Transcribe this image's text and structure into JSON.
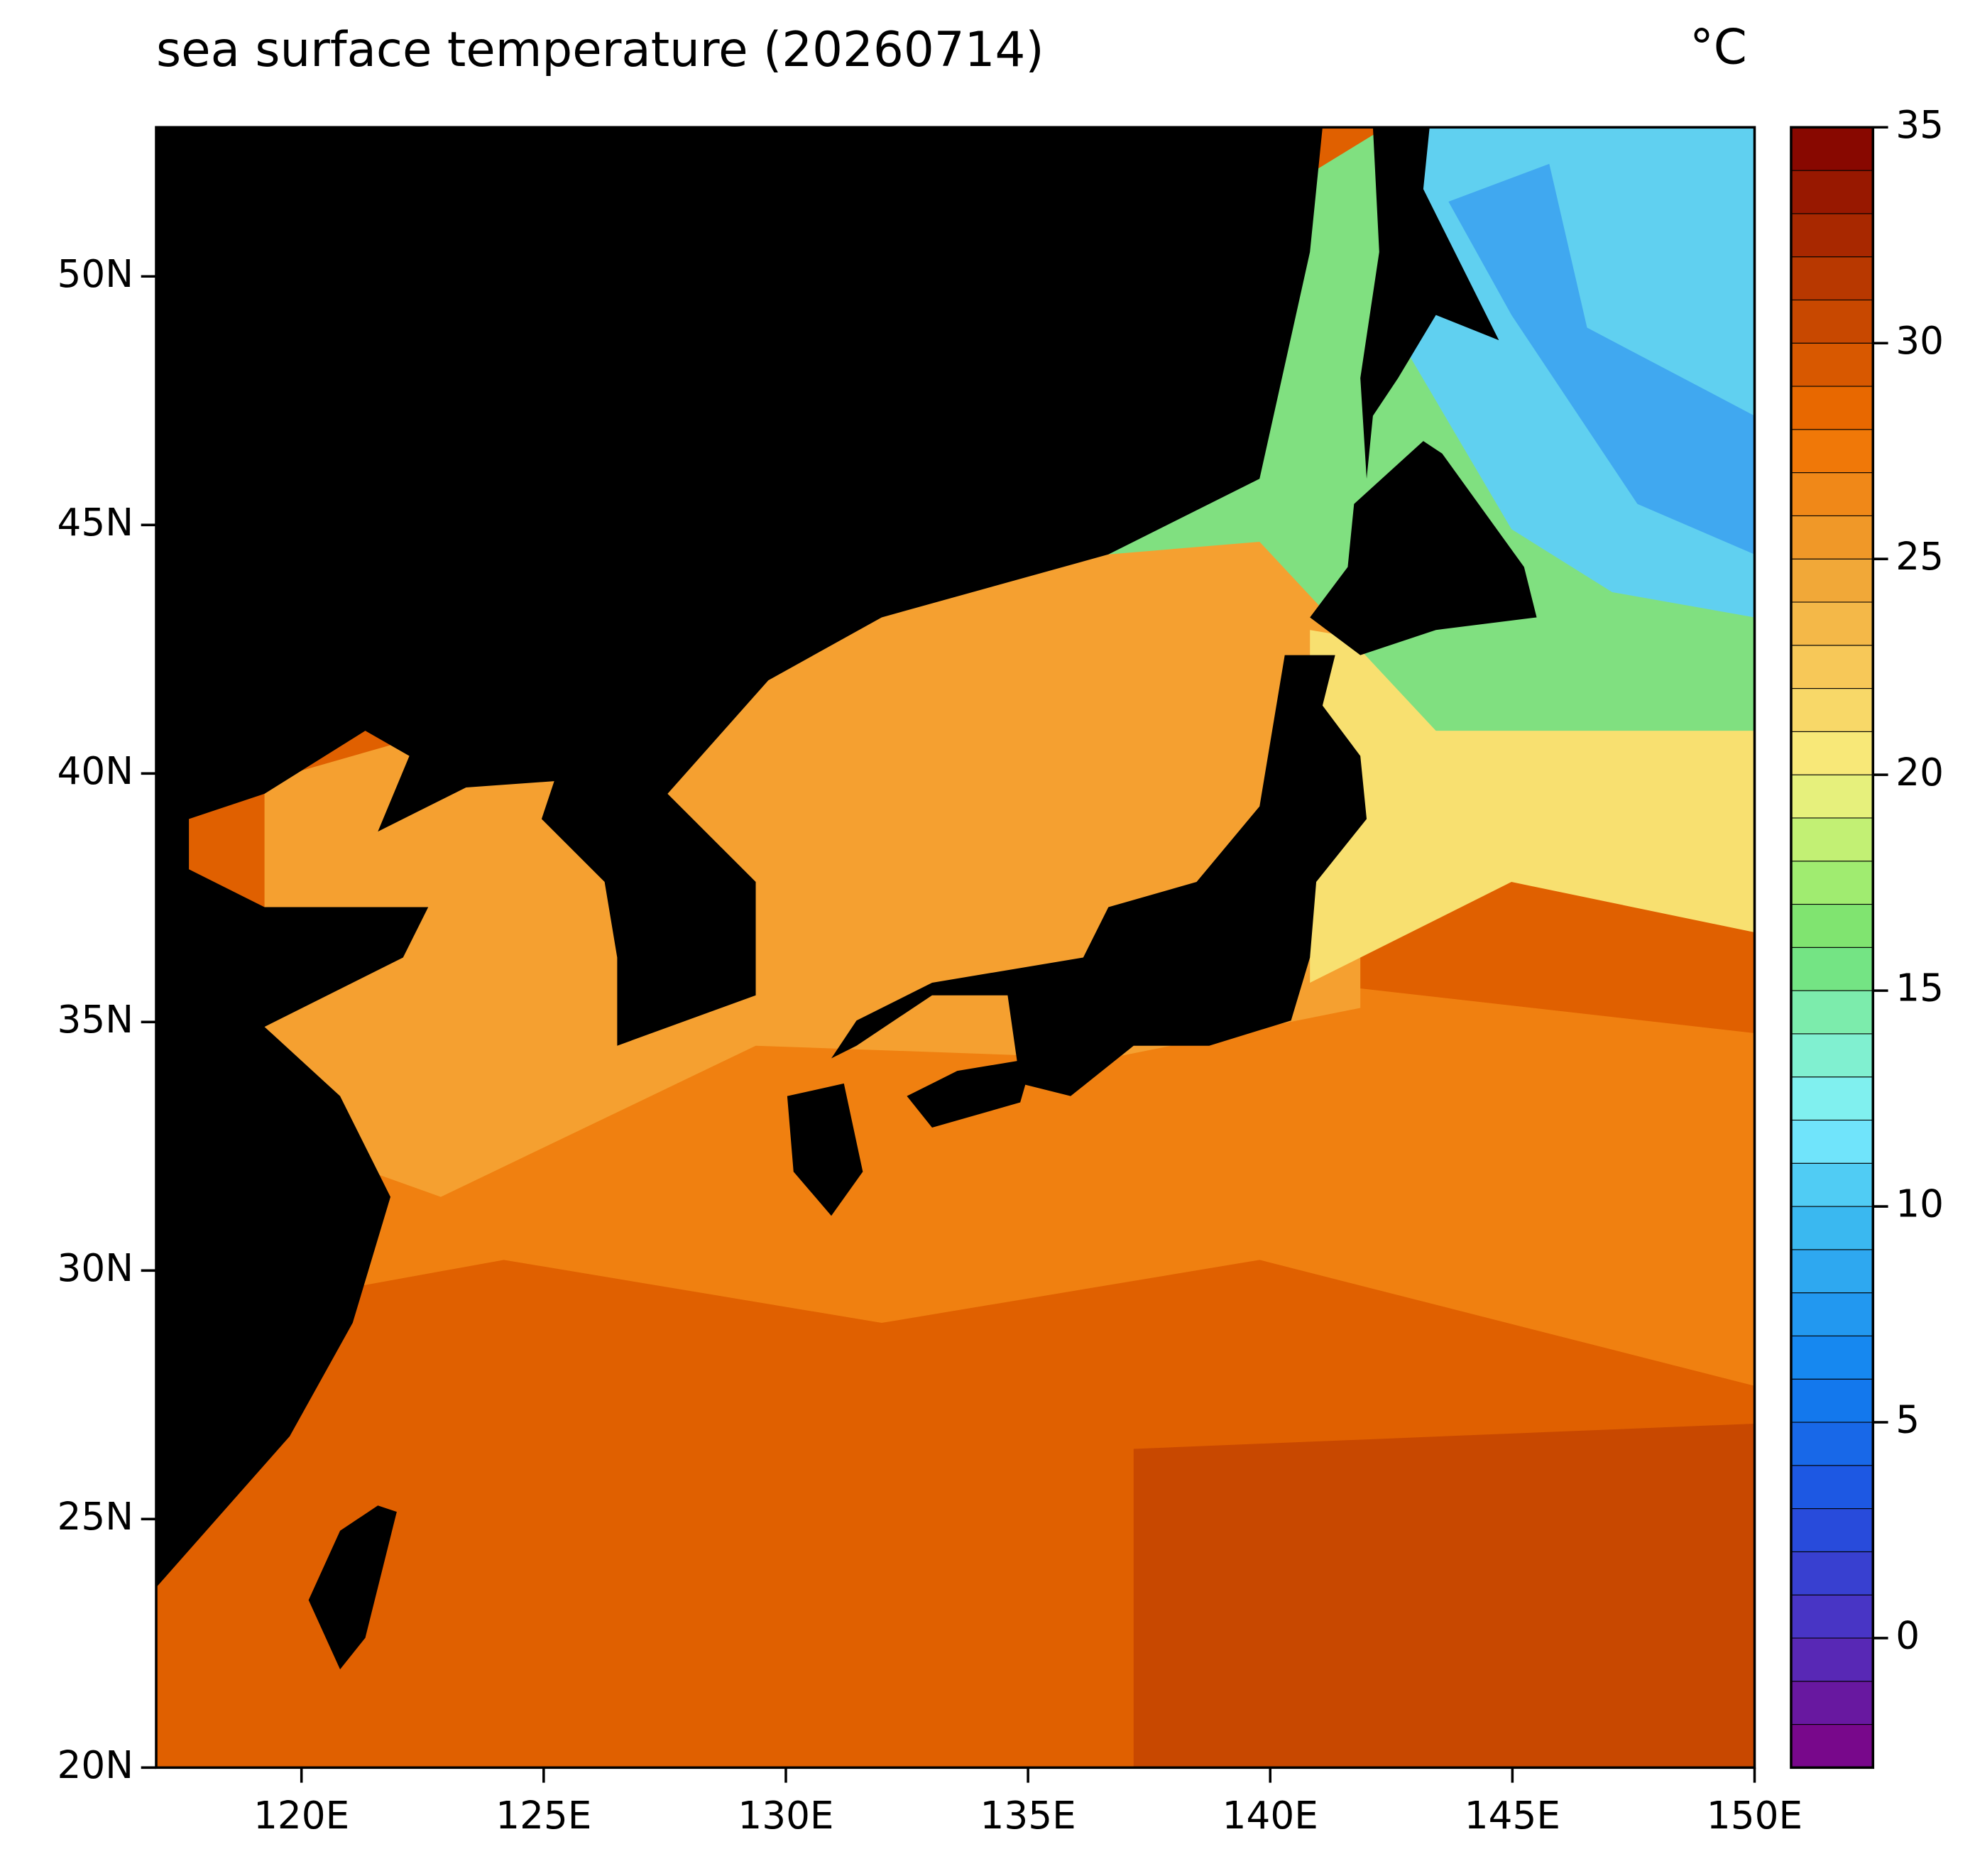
{
  "chart_data": {
    "type": "contour",
    "title": "sea surface temperature (20260714)",
    "unit": "°C",
    "xlim": [
      117,
      150
    ],
    "ylim": [
      20,
      53
    ],
    "xticks": [
      {
        "value": 120,
        "label": "120E"
      },
      {
        "value": 125,
        "label": "125E"
      },
      {
        "value": 130,
        "label": "130E"
      },
      {
        "value": 135,
        "label": "135E"
      },
      {
        "value": 140,
        "label": "140E"
      },
      {
        "value": 145,
        "label": "145E"
      },
      {
        "value": 150,
        "label": "150E"
      }
    ],
    "yticks": [
      {
        "value": 20,
        "label": "20N"
      },
      {
        "value": 25,
        "label": "25N"
      },
      {
        "value": 30,
        "label": "30N"
      },
      {
        "value": 35,
        "label": "35N"
      },
      {
        "value": 40,
        "label": "40N"
      },
      {
        "value": 45,
        "label": "45N"
      },
      {
        "value": 50,
        "label": "50N"
      }
    ],
    "colorbar": {
      "lim": [
        -3,
        35
      ],
      "step": 1,
      "ticks": [
        0,
        5,
        10,
        15,
        20,
        25,
        30,
        35
      ],
      "stops": [
        [
          -3,
          "#800080"
        ],
        [
          0,
          "#5030c0"
        ],
        [
          3,
          "#2050e0"
        ],
        [
          6,
          "#1080f0"
        ],
        [
          10,
          "#40c0f0"
        ],
        [
          12,
          "#80f0ff"
        ],
        [
          14,
          "#80f0c0"
        ],
        [
          16,
          "#70e070"
        ],
        [
          18,
          "#b0f070"
        ],
        [
          20,
          "#f8f080"
        ],
        [
          22,
          "#f8d060"
        ],
        [
          25,
          "#f0a030"
        ],
        [
          28,
          "#f07000"
        ],
        [
          31,
          "#c04000"
        ],
        [
          35,
          "#800000"
        ]
      ]
    }
  }
}
